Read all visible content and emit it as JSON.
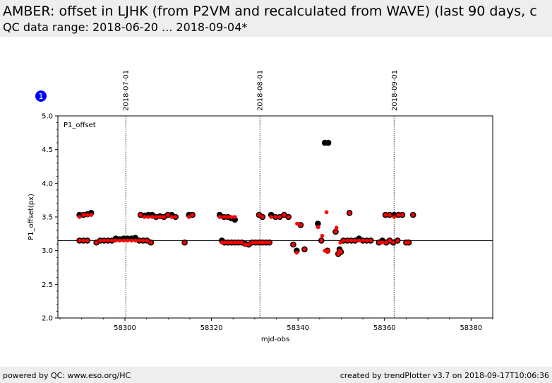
{
  "header": {
    "title": "AMBER: offset in LJHK (from P2VM and recalculated from WAVE) (last 90 days, c",
    "subtitle": "QC data range: 2018-06-20 ... 2018-09-04*"
  },
  "footer": {
    "left": "powered by QC: www.eso.org/HC",
    "right": "created by trendPlotter v3.7 on 2018-09-17T10:06:36"
  },
  "colors": {
    "p2vm": "#000000",
    "wave": "#ff0000",
    "badge": "#0000ff"
  },
  "chart_data": {
    "type": "scatter",
    "badge": "1",
    "panel_label": "P1_offset",
    "xlabel": "mjd-obs",
    "ylabel": "P1_offset(px)",
    "xlim": [
      58284.5,
      58385
    ],
    "ylim": [
      2.0,
      5.0
    ],
    "xticks": [
      58300,
      58320,
      58340,
      58360,
      58380
    ],
    "yticks": [
      2.0,
      2.5,
      3.0,
      3.5,
      4.0,
      4.5,
      5.0
    ],
    "reference_line": 3.15,
    "date_markers": [
      {
        "label": "2018-07-01",
        "x": 58300.2
      },
      {
        "label": "2018-08-01",
        "x": 58331.2
      },
      {
        "label": "2018-09-01",
        "x": 58362.2
      }
    ],
    "series": [
      {
        "marker": "large-black-circle",
        "x": [
          58289.5,
          58290.4,
          58291.3,
          58292.2,
          58289.5,
          58290.4,
          58291.3,
          58293.4,
          58294.3,
          58295.2,
          58296.1,
          58297.0,
          58297.9,
          58298.8,
          58299.7,
          58300.6,
          58301.5,
          58302.4,
          58303.3,
          58304.2,
          58305.1,
          58306.0,
          58303.6,
          58304.5,
          58305.4,
          58306.3,
          58307.2,
          58308.1,
          58309.0,
          58309.9,
          58310.8,
          58311.7,
          58313.8,
          58314.8,
          58315.6,
          58321.9,
          58322.4,
          58323.0,
          58323.8,
          58324.6,
          58325.4,
          58326.2,
          58327.0,
          58327.8,
          58328.6,
          58329.4,
          58330.2,
          58331.0,
          58331.8,
          58332.6,
          58333.4,
          58322.9,
          58323.8,
          58324.6,
          58325.4,
          58331.0,
          58331.8,
          58333.8,
          58334.8,
          58335.8,
          58336.8,
          58337.8,
          58338.9,
          58339.7,
          58340.6,
          58341.5,
          58344.6,
          58345.4,
          58346.2,
          58346.8,
          58347.0,
          58348.7,
          58349.3,
          58349.6,
          58349.9,
          58350.5,
          58351.4,
          58352.3,
          58353.2,
          58354.1,
          58355.0,
          58355.9,
          58356.8,
          58351.9,
          58358.7,
          58359.5,
          58360.4,
          58361.2,
          58362.0,
          58363.0,
          58360.2,
          58361.2,
          58362.2,
          58363.2,
          58364.1,
          58365.0,
          58365.6,
          58366.6
        ],
        "y": [
          3.53,
          3.53,
          3.54,
          3.56,
          3.15,
          3.15,
          3.15,
          3.12,
          3.15,
          3.15,
          3.15,
          3.15,
          3.18,
          3.17,
          3.18,
          3.18,
          3.18,
          3.19,
          3.15,
          3.15,
          3.15,
          3.12,
          3.53,
          3.52,
          3.53,
          3.53,
          3.5,
          3.51,
          3.5,
          3.53,
          3.53,
          3.5,
          3.12,
          3.53,
          3.53,
          3.53,
          3.15,
          3.12,
          3.12,
          3.12,
          3.12,
          3.12,
          3.12,
          3.1,
          3.09,
          3.12,
          3.12,
          3.12,
          3.12,
          3.12,
          3.12,
          3.5,
          3.5,
          3.48,
          3.46,
          3.53,
          3.5,
          3.53,
          3.5,
          3.5,
          3.53,
          3.5,
          3.09,
          3.0,
          3.38,
          3.02,
          3.4,
          3.15,
          4.6,
          3.0,
          4.6,
          3.28,
          2.95,
          3.02,
          2.98,
          3.15,
          3.15,
          3.15,
          3.15,
          3.18,
          3.15,
          3.15,
          3.15,
          3.56,
          3.12,
          3.15,
          3.12,
          3.15,
          3.12,
          3.15,
          3.53,
          3.53,
          3.53,
          3.53,
          3.53,
          3.12,
          3.12,
          3.53
        ]
      },
      {
        "marker": "small-red-dot",
        "x": [
          58289.5,
          58290.4,
          58291.3,
          58292.2,
          58289.5,
          58290.4,
          58291.3,
          58293.4,
          58294.3,
          58295.2,
          58296.1,
          58297.0,
          58297.9,
          58298.8,
          58299.7,
          58300.6,
          58301.5,
          58302.4,
          58303.3,
          58304.2,
          58305.1,
          58306.0,
          58303.6,
          58304.5,
          58305.4,
          58306.3,
          58307.2,
          58308.1,
          58309.0,
          58309.9,
          58310.8,
          58311.7,
          58313.8,
          58314.8,
          58315.6,
          58321.9,
          58322.4,
          58323.0,
          58323.8,
          58324.6,
          58325.4,
          58326.2,
          58327.0,
          58327.8,
          58328.6,
          58329.4,
          58330.2,
          58331.0,
          58331.8,
          58332.6,
          58333.4,
          58322.9,
          58323.8,
          58324.6,
          58325.4,
          58331.0,
          58331.8,
          58333.8,
          58334.8,
          58335.8,
          58336.8,
          58337.8,
          58338.9,
          58339.7,
          58340.6,
          58341.5,
          58344.6,
          58345.4,
          58346.2,
          58346.8,
          58347.0,
          58348.7,
          58349.3,
          58349.6,
          58349.9,
          58350.5,
          58351.4,
          58352.3,
          58353.2,
          58354.1,
          58355.0,
          58355.9,
          58356.8,
          58351.9,
          58358.7,
          58359.5,
          58360.4,
          58361.2,
          58362.0,
          58363.0,
          58360.2,
          58361.2,
          58362.2,
          58363.2,
          58364.1,
          58365.0,
          58365.6,
          58366.6,
          58339.8,
          58344.7,
          58345.6,
          58346.6,
          58348.9,
          58349.8
        ],
        "y": [
          3.5,
          3.53,
          3.53,
          3.53,
          3.15,
          3.15,
          3.15,
          3.12,
          3.15,
          3.15,
          3.15,
          3.15,
          3.15,
          3.15,
          3.15,
          3.15,
          3.15,
          3.15,
          3.15,
          3.15,
          3.15,
          3.12,
          3.53,
          3.5,
          3.5,
          3.5,
          3.5,
          3.5,
          3.5,
          3.53,
          3.5,
          3.5,
          3.12,
          3.5,
          3.53,
          3.5,
          3.12,
          3.12,
          3.12,
          3.12,
          3.12,
          3.12,
          3.12,
          3.09,
          3.09,
          3.12,
          3.12,
          3.12,
          3.12,
          3.12,
          3.12,
          3.5,
          3.5,
          3.5,
          3.5,
          3.53,
          3.5,
          3.5,
          3.5,
          3.5,
          3.53,
          3.5,
          3.09,
          2.97,
          3.38,
          3.02,
          3.35,
          3.15,
          3.0,
          2.98,
          3.0,
          3.28,
          2.95,
          3.0,
          2.98,
          3.15,
          3.15,
          3.15,
          3.15,
          3.15,
          3.15,
          3.15,
          3.15,
          3.56,
          3.12,
          3.12,
          3.12,
          3.15,
          3.12,
          3.15,
          3.53,
          3.53,
          3.5,
          3.53,
          3.53,
          3.12,
          3.12,
          3.53,
          3.4,
          3.35,
          3.22,
          3.57,
          3.34,
          3.12
        ]
      }
    ]
  }
}
